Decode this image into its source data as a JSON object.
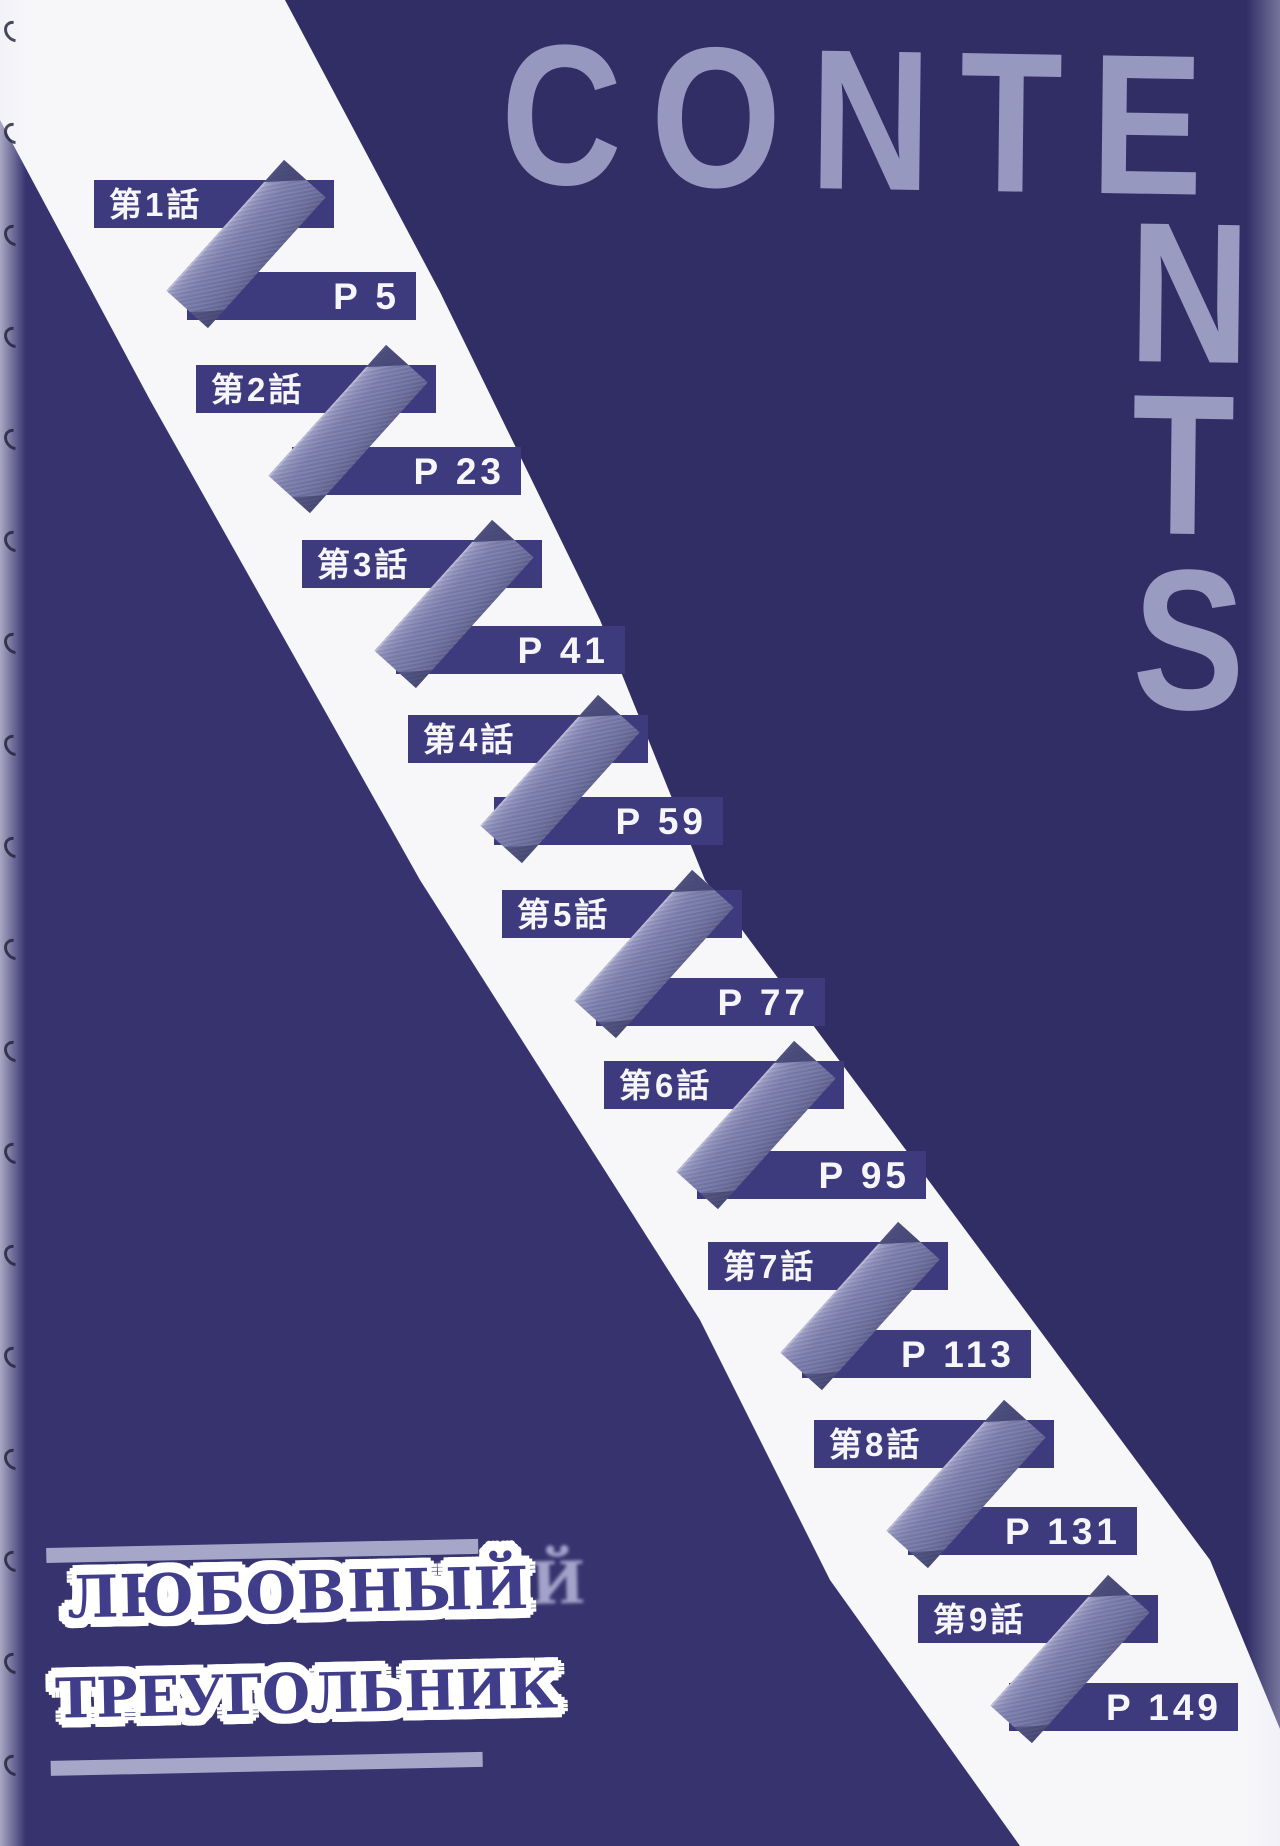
{
  "header": {
    "title": "CONTENTS",
    "title_row": "CONTE",
    "title_column": [
      "N",
      "T",
      "S"
    ]
  },
  "toc": {
    "entries": [
      {
        "chapter": "第1話",
        "page": "P 5"
      },
      {
        "chapter": "第2話",
        "page": "P 23"
      },
      {
        "chapter": "第3話",
        "page": "P 41"
      },
      {
        "chapter": "第4話",
        "page": "P 59"
      },
      {
        "chapter": "第5話",
        "page": "P 77"
      },
      {
        "chapter": "第6話",
        "page": "P 95"
      },
      {
        "chapter": "第7話",
        "page": "P 113"
      },
      {
        "chapter": "第8話",
        "page": "P 131"
      },
      {
        "chapter": "第9話",
        "page": "P 149"
      }
    ]
  },
  "logo": {
    "line1": "ЛЮБОВНЫЙ",
    "line2": "ТРЕУГОЛЬНИК"
  },
  "colors": {
    "background_left": "#36336e",
    "background_right": "#312e66",
    "box_navy": "#3d3b7e",
    "tape": "#7c7eac",
    "white_stripe": "#f7f7fa",
    "title_letters": "#9698c0",
    "logo_text": "#403e8a",
    "logo_bar": "#a6a6c9"
  }
}
